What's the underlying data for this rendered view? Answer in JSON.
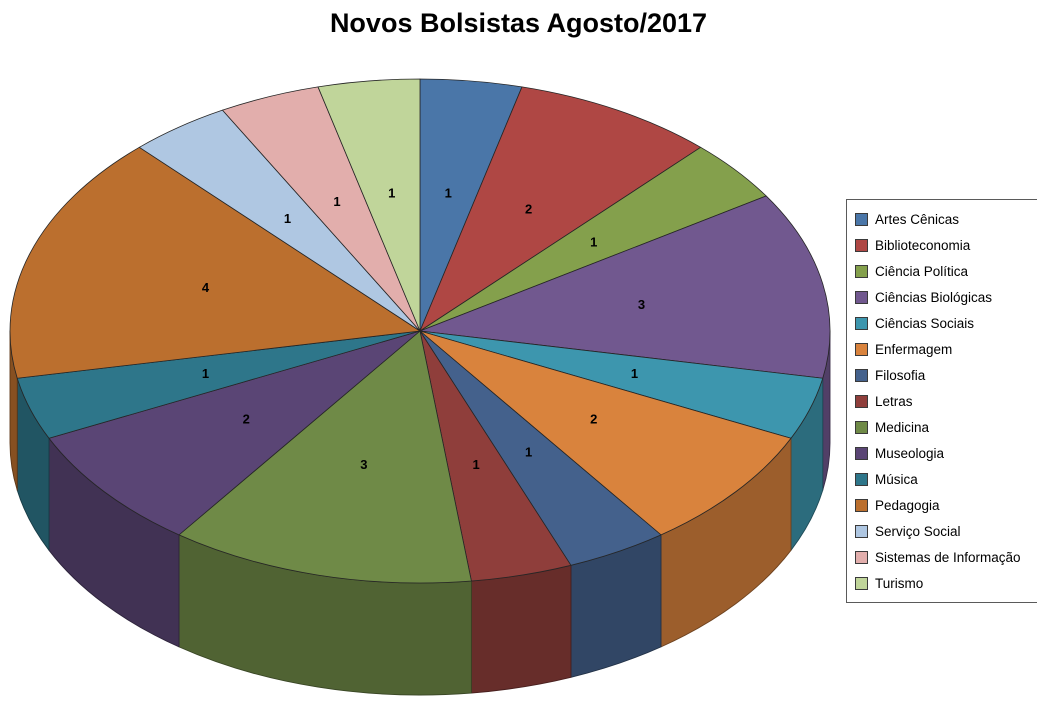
{
  "title": "Novos Bolsistas Agosto/2017",
  "chart_data": {
    "type": "pie",
    "style": "3d",
    "title": "Novos Bolsistas Agosto/2017",
    "start_angle_deg": 0,
    "direction": "clockwise",
    "total": 25,
    "data_labels": "value",
    "legend_position": "right",
    "categories": [
      "Artes Cênicas",
      "Biblioteconomia",
      "Ciência Política",
      "Ciências Biológicas",
      "Ciências Sociais",
      "Enfermagem",
      "Filosofia",
      "Letras",
      "Medicina",
      "Museologia",
      "Música",
      "Pedagogia",
      "Serviço Social",
      "Sistemas de Informação",
      "Turismo"
    ],
    "values": [
      1,
      2,
      1,
      3,
      1,
      2,
      1,
      1,
      3,
      2,
      1,
      4,
      1,
      1,
      1
    ],
    "colors": [
      "#4A76A8",
      "#AF4744",
      "#84A04C",
      "#71588F",
      "#3D96AE",
      "#D9833D",
      "#44618C",
      "#8F3E3B",
      "#6F8A47",
      "#5A4575",
      "#2E768A",
      "#BB6F2E",
      "#AFC7E2",
      "#E2AEAC",
      "#C0D59A"
    ]
  }
}
